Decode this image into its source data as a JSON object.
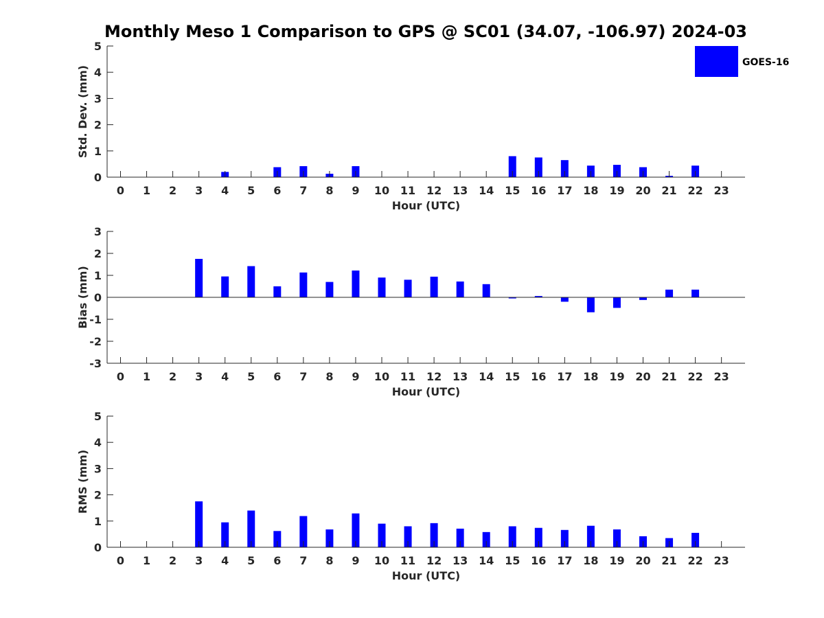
{
  "title": "Monthly Meso 1 Comparison to GPS @ SC01 (34.07, -106.97) 2024-03",
  "colors": {
    "bar": "#0000ff",
    "axis": "#262626",
    "background": "#ffffff"
  },
  "legend": {
    "label": "GOES-16",
    "placement": "top-right"
  },
  "chart_data": [
    {
      "type": "bar",
      "title": "",
      "xlabel": "Hour (UTC)",
      "ylabel": "Std. Dev. (mm)",
      "categories": [
        "0",
        "1",
        "2",
        "3",
        "4",
        "5",
        "6",
        "7",
        "8",
        "9",
        "10",
        "11",
        "12",
        "13",
        "14",
        "15",
        "16",
        "17",
        "18",
        "19",
        "20",
        "21",
        "22",
        "23"
      ],
      "series": [
        {
          "name": "GOES-16",
          "values": [
            null,
            null,
            null,
            null,
            0.2,
            null,
            0.38,
            0.42,
            0.13,
            0.42,
            null,
            null,
            null,
            null,
            null,
            0.8,
            0.75,
            0.65,
            0.44,
            0.47,
            0.38,
            0.05,
            0.44,
            null
          ]
        }
      ],
      "ylim": [
        0,
        5
      ],
      "yticks": [
        0,
        1,
        2,
        3,
        4,
        5
      ],
      "grid": false
    },
    {
      "type": "bar",
      "title": "",
      "xlabel": "Hour (UTC)",
      "ylabel": "Bias (mm)",
      "categories": [
        "0",
        "1",
        "2",
        "3",
        "4",
        "5",
        "6",
        "7",
        "8",
        "9",
        "10",
        "11",
        "12",
        "13",
        "14",
        "15",
        "16",
        "17",
        "18",
        "19",
        "20",
        "21",
        "22",
        "23"
      ],
      "series": [
        {
          "name": "GOES-16",
          "values": [
            null,
            null,
            null,
            1.75,
            0.95,
            1.42,
            0.5,
            1.13,
            0.7,
            1.22,
            0.9,
            0.8,
            0.94,
            0.72,
            0.6,
            -0.05,
            0.06,
            -0.2,
            -0.68,
            -0.48,
            -0.12,
            0.35,
            0.35,
            null
          ]
        }
      ],
      "ylim": [
        -3,
        3
      ],
      "yticks": [
        -3,
        -2,
        -1,
        0,
        1,
        2,
        3
      ],
      "grid": false
    },
    {
      "type": "bar",
      "title": "",
      "xlabel": "Hour (UTC)",
      "ylabel": "RMS (mm)",
      "categories": [
        "0",
        "1",
        "2",
        "3",
        "4",
        "5",
        "6",
        "7",
        "8",
        "9",
        "10",
        "11",
        "12",
        "13",
        "14",
        "15",
        "16",
        "17",
        "18",
        "19",
        "20",
        "21",
        "22",
        "23"
      ],
      "series": [
        {
          "name": "GOES-16",
          "values": [
            null,
            null,
            null,
            1.75,
            0.95,
            1.4,
            0.62,
            1.19,
            0.68,
            1.29,
            0.9,
            0.8,
            0.92,
            0.71,
            0.58,
            0.8,
            0.74,
            0.66,
            0.82,
            0.68,
            0.42,
            0.35,
            0.55,
            null
          ]
        }
      ],
      "ylim": [
        0,
        5
      ],
      "yticks": [
        0,
        1,
        2,
        3,
        4,
        5
      ],
      "grid": false
    }
  ]
}
